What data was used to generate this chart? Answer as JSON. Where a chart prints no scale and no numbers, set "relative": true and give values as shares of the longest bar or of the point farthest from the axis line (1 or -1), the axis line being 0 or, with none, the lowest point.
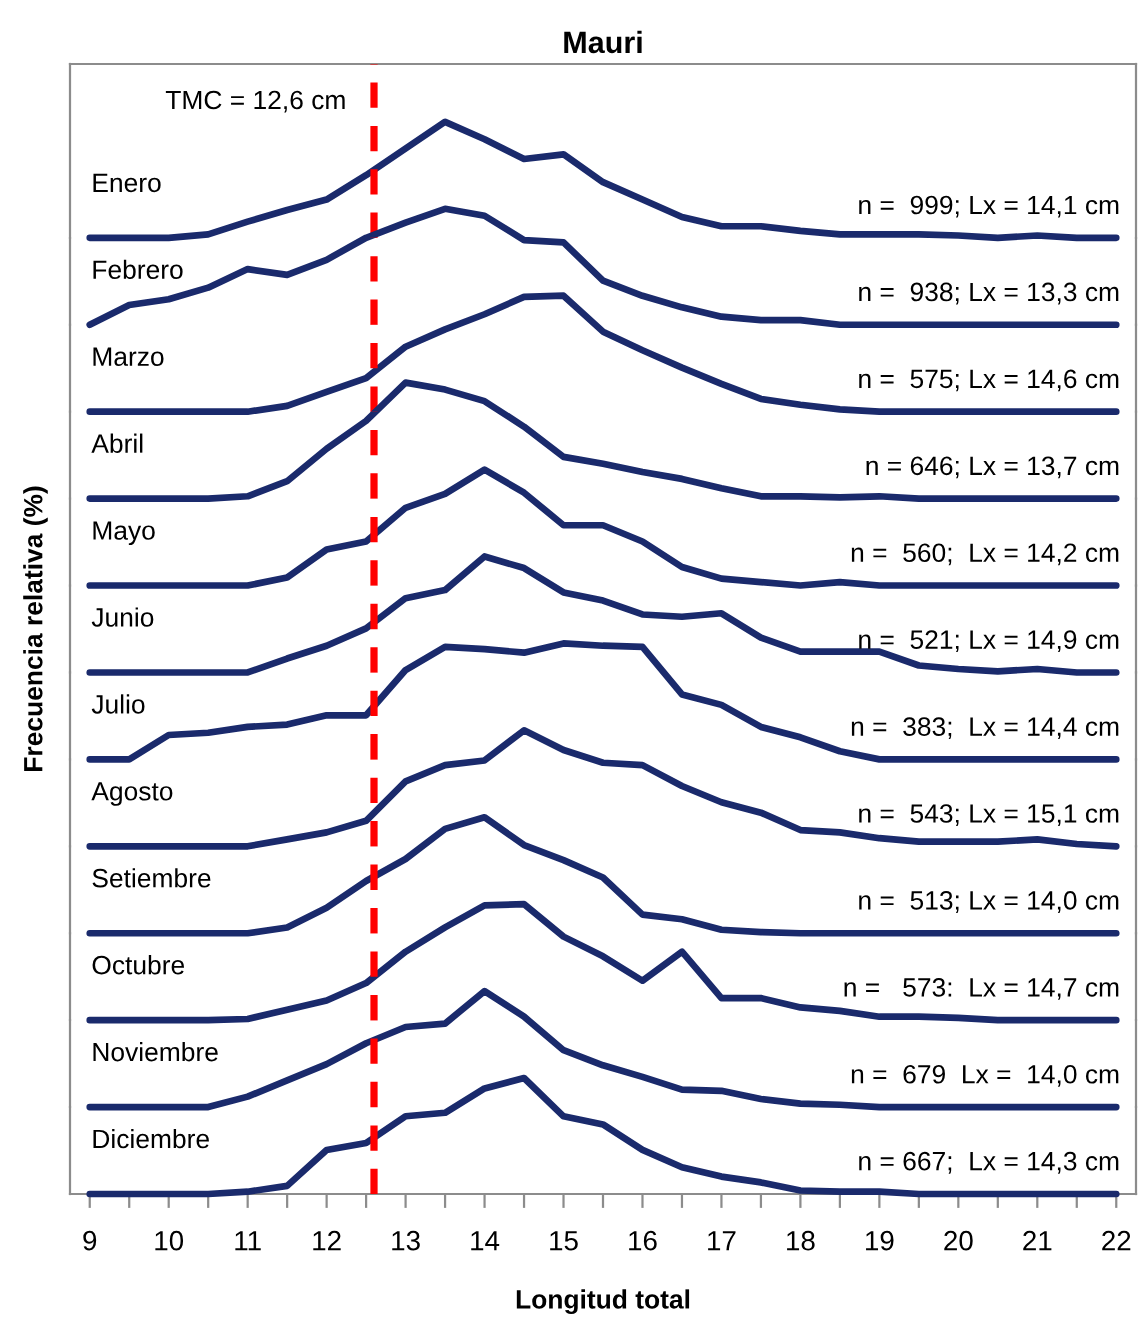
{
  "chart_data": [
    {
      "type": "line",
      "relative": true,
      "title": "Mauri",
      "xlim": [
        8.75,
        22.25
      ],
      "tick_labels": false,
      "annotations": [
        "Enero",
        "n =  999; Lx = 14,1 cm"
      ],
      "ref_lines": [
        {
          "axis": "x",
          "value": 12.6,
          "label": "TMC = 12,6 cm",
          "color": "#ff0000",
          "line_style": "dashed"
        }
      ],
      "series": [
        {
          "color": "#1a2a6c",
          "x": [
            9,
            9.5,
            10,
            10.5,
            11,
            11.5,
            12,
            12.5,
            13,
            13.5,
            14,
            14.5,
            15,
            15.5,
            16,
            16.5,
            17,
            17.5,
            18,
            18.5,
            19,
            19.5,
            20,
            20.5,
            21,
            21.5,
            22
          ],
          "values": [
            0,
            0,
            0,
            0.03,
            0.14,
            0.24,
            0.33,
            0.54,
            0.77,
            1,
            0.85,
            0.68,
            0.72,
            0.48,
            0.33,
            0.18,
            0.1,
            0.1,
            0.06,
            0.03,
            0.03,
            0.03,
            0.02,
            0,
            0.02,
            0,
            0
          ]
        }
      ]
    },
    {
      "type": "line",
      "relative": true,
      "xlim": [
        8.75,
        22.25
      ],
      "tick_labels": false,
      "annotations": [
        "Febrero",
        "n =  938; Lx = 13,3 cm"
      ],
      "ref_lines": [
        {
          "axis": "x",
          "value": 12.6,
          "color": "#ff0000",
          "line_style": "dashed"
        }
      ],
      "series": [
        {
          "color": "#1a2a6c",
          "x": [
            9,
            9.5,
            10,
            10.5,
            11,
            11.5,
            12,
            12.5,
            13,
            13.5,
            14,
            14.5,
            15,
            15.5,
            16,
            16.5,
            17,
            17.5,
            18,
            18.5,
            19,
            19.5,
            20,
            20.5,
            21,
            21.5,
            22
          ],
          "values": [
            0,
            0.17,
            0.22,
            0.32,
            0.48,
            0.43,
            0.56,
            0.75,
            0.88,
            1,
            0.94,
            0.73,
            0.71,
            0.38,
            0.25,
            0.15,
            0.07,
            0.04,
            0.04,
            0,
            0,
            0,
            0,
            0,
            0,
            0,
            0
          ]
        }
      ]
    },
    {
      "type": "line",
      "relative": true,
      "xlim": [
        8.75,
        22.25
      ],
      "tick_labels": false,
      "annotations": [
        "Marzo",
        "n =  575; Lx = 14,6 cm"
      ],
      "ref_lines": [
        {
          "axis": "x",
          "value": 12.6,
          "color": "#ff0000",
          "line_style": "dashed"
        }
      ],
      "series": [
        {
          "color": "#1a2a6c",
          "x": [
            9,
            9.5,
            10,
            10.5,
            11,
            11.5,
            12,
            12.5,
            13,
            13.5,
            14,
            14.5,
            15,
            15.5,
            16,
            16.5,
            17,
            17.5,
            18,
            18.5,
            19,
            19.5,
            20,
            20.5,
            21,
            21.5,
            22
          ],
          "values": [
            0,
            0,
            0,
            0,
            0,
            0.05,
            0.17,
            0.29,
            0.56,
            0.71,
            0.84,
            0.99,
            1,
            0.69,
            0.53,
            0.38,
            0.24,
            0.11,
            0.06,
            0.02,
            0,
            0,
            0,
            0,
            0,
            0,
            0
          ]
        }
      ]
    },
    {
      "type": "line",
      "relative": true,
      "xlim": [
        8.75,
        22.25
      ],
      "tick_labels": false,
      "annotations": [
        "Abril",
        "n = 646; Lx = 13,7 cm"
      ],
      "ref_lines": [
        {
          "axis": "x",
          "value": 12.6,
          "color": "#ff0000",
          "line_style": "dashed"
        }
      ],
      "series": [
        {
          "color": "#1a2a6c",
          "x": [
            9,
            9.5,
            10,
            10.5,
            11,
            11.5,
            12,
            12.5,
            13,
            13.5,
            14,
            14.5,
            15,
            15.5,
            16,
            16.5,
            17,
            17.5,
            18,
            18.5,
            19,
            19.5,
            20,
            20.5,
            21,
            21.5,
            22
          ],
          "values": [
            0,
            0,
            0,
            0,
            0.02,
            0.15,
            0.43,
            0.67,
            1,
            0.94,
            0.84,
            0.62,
            0.36,
            0.3,
            0.23,
            0.17,
            0.09,
            0.02,
            0.02,
            0.01,
            0.02,
            0,
            0,
            0,
            0,
            0,
            0
          ]
        }
      ]
    },
    {
      "type": "line",
      "relative": true,
      "xlim": [
        8.75,
        22.25
      ],
      "tick_labels": false,
      "annotations": [
        "Mayo",
        "n =  560;  Lx = 14,2 cm"
      ],
      "ref_lines": [
        {
          "axis": "x",
          "value": 12.6,
          "color": "#ff0000",
          "line_style": "dashed"
        }
      ],
      "series": [
        {
          "color": "#1a2a6c",
          "x": [
            9,
            9.5,
            10,
            10.5,
            11,
            11.5,
            12,
            12.5,
            13,
            13.5,
            14,
            14.5,
            15,
            15.5,
            16,
            16.5,
            17,
            17.5,
            18,
            18.5,
            19,
            19.5,
            20,
            20.5,
            21,
            21.5,
            22
          ],
          "values": [
            0,
            0,
            0,
            0,
            0,
            0.07,
            0.31,
            0.38,
            0.67,
            0.79,
            1,
            0.8,
            0.52,
            0.52,
            0.38,
            0.16,
            0.06,
            0.03,
            0,
            0.03,
            0,
            0,
            0,
            0,
            0,
            0,
            0
          ]
        }
      ]
    },
    {
      "type": "line",
      "relative": true,
      "xlim": [
        8.75,
        22.25
      ],
      "tick_labels": false,
      "ylabel": "Frecuencia relativa (%)",
      "annotations": [
        "Junio",
        "n =  521; Lx = 14,9 cm"
      ],
      "ref_lines": [
        {
          "axis": "x",
          "value": 12.6,
          "color": "#ff0000",
          "line_style": "dashed"
        }
      ],
      "series": [
        {
          "color": "#1a2a6c",
          "x": [
            9,
            9.5,
            10,
            10.5,
            11,
            11.5,
            12,
            12.5,
            13,
            13.5,
            14,
            14.5,
            15,
            15.5,
            16,
            16.5,
            17,
            17.5,
            18,
            18.5,
            19,
            19.5,
            20,
            20.5,
            21,
            21.5,
            22
          ],
          "values": [
            0,
            0,
            0,
            0,
            0,
            0.12,
            0.23,
            0.38,
            0.64,
            0.71,
            1,
            0.9,
            0.69,
            0.62,
            0.5,
            0.48,
            0.51,
            0.3,
            0.18,
            0.18,
            0.18,
            0.06,
            0.03,
            0.01,
            0.03,
            0,
            0
          ]
        }
      ]
    },
    {
      "type": "line",
      "relative": true,
      "xlim": [
        8.75,
        22.25
      ],
      "tick_labels": false,
      "annotations": [
        "Julio",
        "n =  383;  Lx = 14,4 cm"
      ],
      "ref_lines": [
        {
          "axis": "x",
          "value": 12.6,
          "color": "#ff0000",
          "line_style": "dashed"
        }
      ],
      "series": [
        {
          "color": "#1a2a6c",
          "x": [
            9,
            9.5,
            10,
            10.5,
            11,
            11.5,
            12,
            12.5,
            13,
            13.5,
            14,
            14.5,
            15,
            15.5,
            16,
            16.5,
            17,
            17.5,
            18,
            18.5,
            19,
            19.5,
            20,
            20.5,
            21,
            21.5,
            22
          ],
          "values": [
            0,
            0,
            0.21,
            0.23,
            0.28,
            0.3,
            0.38,
            0.38,
            0.77,
            0.97,
            0.95,
            0.92,
            1,
            0.98,
            0.97,
            0.56,
            0.47,
            0.28,
            0.19,
            0.07,
            0,
            0,
            0,
            0,
            0,
            0,
            0
          ]
        }
      ]
    },
    {
      "type": "line",
      "relative": true,
      "xlim": [
        8.75,
        22.25
      ],
      "tick_labels": false,
      "annotations": [
        "Agosto",
        "n =  543; Lx = 15,1 cm"
      ],
      "ref_lines": [
        {
          "axis": "x",
          "value": 12.6,
          "color": "#ff0000",
          "line_style": "dashed"
        }
      ],
      "series": [
        {
          "color": "#1a2a6c",
          "x": [
            9,
            9.5,
            10,
            10.5,
            11,
            11.5,
            12,
            12.5,
            13,
            13.5,
            14,
            14.5,
            15,
            15.5,
            16,
            16.5,
            17,
            17.5,
            18,
            18.5,
            19,
            19.5,
            20,
            20.5,
            21,
            21.5,
            22
          ],
          "values": [
            0,
            0,
            0,
            0,
            0,
            0.06,
            0.12,
            0.22,
            0.56,
            0.7,
            0.74,
            1,
            0.83,
            0.72,
            0.7,
            0.52,
            0.38,
            0.29,
            0.14,
            0.12,
            0.07,
            0.04,
            0.04,
            0.04,
            0.06,
            0.02,
            0
          ]
        }
      ]
    },
    {
      "type": "line",
      "relative": true,
      "xlim": [
        8.75,
        22.25
      ],
      "tick_labels": false,
      "annotations": [
        "Setiembre",
        "n =  513; Lx = 14,0 cm"
      ],
      "ref_lines": [
        {
          "axis": "x",
          "value": 12.6,
          "color": "#ff0000",
          "line_style": "dashed"
        }
      ],
      "series": [
        {
          "color": "#1a2a6c",
          "x": [
            9,
            9.5,
            10,
            10.5,
            11,
            11.5,
            12,
            12.5,
            13,
            13.5,
            14,
            14.5,
            15,
            15.5,
            16,
            16.5,
            17,
            17.5,
            18,
            18.5,
            19,
            19.5,
            20,
            20.5,
            21,
            21.5,
            22
          ],
          "values": [
            0,
            0,
            0,
            0,
            0,
            0.05,
            0.22,
            0.45,
            0.64,
            0.9,
            1,
            0.76,
            0.63,
            0.48,
            0.16,
            0.12,
            0.03,
            0.01,
            0,
            0,
            0,
            0,
            0,
            0,
            0,
            0,
            0
          ]
        }
      ]
    },
    {
      "type": "line",
      "relative": true,
      "xlim": [
        8.75,
        22.25
      ],
      "tick_labels": false,
      "annotations": [
        "Octubre",
        "n =   573:  Lx = 14,7 cm"
      ],
      "ref_lines": [
        {
          "axis": "x",
          "value": 12.6,
          "color": "#ff0000",
          "line_style": "dashed"
        }
      ],
      "series": [
        {
          "color": "#1a2a6c",
          "x": [
            9,
            9.5,
            10,
            10.5,
            11,
            11.5,
            12,
            12.5,
            13,
            13.5,
            14,
            14.5,
            15,
            15.5,
            16,
            16.5,
            17,
            17.5,
            18,
            18.5,
            19,
            19.5,
            20,
            20.5,
            21,
            21.5,
            22
          ],
          "values": [
            0,
            0,
            0,
            0,
            0.01,
            0.09,
            0.17,
            0.32,
            0.59,
            0.8,
            0.99,
            1,
            0.72,
            0.55,
            0.34,
            0.59,
            0.19,
            0.19,
            0.11,
            0.08,
            0.03,
            0.03,
            0.02,
            0,
            0,
            0,
            0
          ]
        }
      ]
    },
    {
      "type": "line",
      "relative": true,
      "xlim": [
        8.75,
        22.25
      ],
      "tick_labels": false,
      "annotations": [
        "Noviembre",
        "n =  679  Lx =  14,0 cm"
      ],
      "ref_lines": [
        {
          "axis": "x",
          "value": 12.6,
          "color": "#ff0000",
          "line_style": "dashed"
        }
      ],
      "series": [
        {
          "color": "#1a2a6c",
          "x": [
            9,
            9.5,
            10,
            10.5,
            11,
            11.5,
            12,
            12.5,
            13,
            13.5,
            14,
            14.5,
            15,
            15.5,
            16,
            16.5,
            17,
            17.5,
            18,
            18.5,
            19,
            19.5,
            20,
            20.5,
            21,
            21.5,
            22
          ],
          "values": [
            0,
            0,
            0,
            0,
            0.09,
            0.23,
            0.37,
            0.55,
            0.69,
            0.72,
            1,
            0.78,
            0.49,
            0.36,
            0.26,
            0.15,
            0.14,
            0.07,
            0.03,
            0.02,
            0,
            0,
            0,
            0,
            0,
            0,
            0
          ]
        }
      ]
    },
    {
      "type": "line",
      "relative": true,
      "xlim": [
        8.75,
        22.25
      ],
      "tick_labels": "x",
      "xlabel": "Longitud total",
      "annotations": [
        "Diciembre",
        "n = 667;  Lx = 14,3 cm"
      ],
      "ref_lines": [
        {
          "axis": "x",
          "value": 12.6,
          "color": "#ff0000",
          "line_style": "dashed"
        }
      ],
      "xticks": [
        9,
        {
          "value": 9.5,
          "label": null
        },
        10,
        {
          "value": 10.5,
          "label": null
        },
        11,
        {
          "value": 11.5,
          "label": null
        },
        12,
        {
          "value": 12.5,
          "label": null
        },
        13,
        {
          "value": 13.5,
          "label": null
        },
        14,
        {
          "value": 14.5,
          "label": null
        },
        15,
        {
          "value": 15.5,
          "label": null
        },
        16,
        {
          "value": 16.5,
          "label": null
        },
        17,
        {
          "value": 17.5,
          "label": null
        },
        18,
        {
          "value": 18.5,
          "label": null
        },
        19,
        {
          "value": 19.5,
          "label": null
        },
        20,
        {
          "value": 20.5,
          "label": null
        },
        21,
        {
          "value": 21.5,
          "label": null
        },
        22
      ],
      "series": [
        {
          "color": "#1a2a6c",
          "x": [
            9,
            9.5,
            10,
            10.5,
            11,
            11.5,
            12,
            12.5,
            13,
            13.5,
            14,
            14.5,
            15,
            15.5,
            16,
            16.5,
            17,
            17.5,
            18,
            18.5,
            19,
            19.5,
            20,
            20.5,
            21,
            21.5,
            22
          ],
          "values": [
            0,
            0,
            0,
            0,
            0.02,
            0.07,
            0.38,
            0.44,
            0.67,
            0.7,
            0.91,
            1,
            0.67,
            0.6,
            0.38,
            0.23,
            0.15,
            0.1,
            0.03,
            0.02,
            0.02,
            0,
            0,
            0,
            0,
            0,
            0
          ]
        }
      ]
    }
  ]
}
